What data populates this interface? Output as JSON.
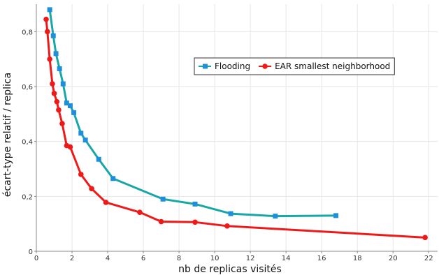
{
  "chart_data": {
    "type": "line",
    "xlabel": "nb de replicas visités",
    "ylabel": "écart-type relatif / replica",
    "xlim": [
      0,
      22.5
    ],
    "ylim": [
      0,
      0.9
    ],
    "x_ticks": [
      0,
      2,
      4,
      6,
      8,
      10,
      12,
      14,
      16,
      18,
      20,
      22
    ],
    "y_ticks": [
      0,
      0.2,
      0.4,
      0.6,
      0.8
    ],
    "x_tick_labels": [
      "0",
      "2",
      "4",
      "6",
      "8",
      "10",
      "12",
      "14",
      "16",
      "18",
      "20",
      "22"
    ],
    "y_tick_labels": [
      "0",
      "0,2",
      "0,4",
      "0,6",
      "0,8"
    ],
    "grid": "vertical+horizontal",
    "legend_position": "right-middle",
    "series": [
      {
        "name": "Flooding",
        "color": "#18a7a7",
        "marker_color": "#1f8fdc",
        "marker": "square",
        "points": [
          [
            0.75,
            0.88
          ],
          [
            0.95,
            0.785
          ],
          [
            1.1,
            0.72
          ],
          [
            1.3,
            0.665
          ],
          [
            1.5,
            0.61
          ],
          [
            1.7,
            0.54
          ],
          [
            1.9,
            0.53
          ],
          [
            2.1,
            0.505
          ],
          [
            2.5,
            0.43
          ],
          [
            2.75,
            0.405
          ],
          [
            3.5,
            0.335
          ],
          [
            4.3,
            0.265
          ],
          [
            7.1,
            0.19
          ],
          [
            8.9,
            0.172
          ],
          [
            10.9,
            0.137
          ],
          [
            13.4,
            0.128
          ],
          [
            16.8,
            0.13
          ]
        ]
      },
      {
        "name": "EAR smallest neighborhood",
        "color": "#ee1a1a",
        "marker_color": "#ee1a1a",
        "marker": "circle",
        "points": [
          [
            0.55,
            0.845
          ],
          [
            0.62,
            0.8
          ],
          [
            0.75,
            0.7
          ],
          [
            0.9,
            0.61
          ],
          [
            1.0,
            0.575
          ],
          [
            1.15,
            0.545
          ],
          [
            1.25,
            0.515
          ],
          [
            1.45,
            0.465
          ],
          [
            1.7,
            0.385
          ],
          [
            1.9,
            0.38
          ],
          [
            2.5,
            0.28
          ],
          [
            3.1,
            0.228
          ],
          [
            3.9,
            0.178
          ],
          [
            5.8,
            0.142
          ],
          [
            7.0,
            0.108
          ],
          [
            8.9,
            0.106
          ],
          [
            10.7,
            0.092
          ],
          [
            21.8,
            0.05
          ]
        ]
      }
    ]
  }
}
